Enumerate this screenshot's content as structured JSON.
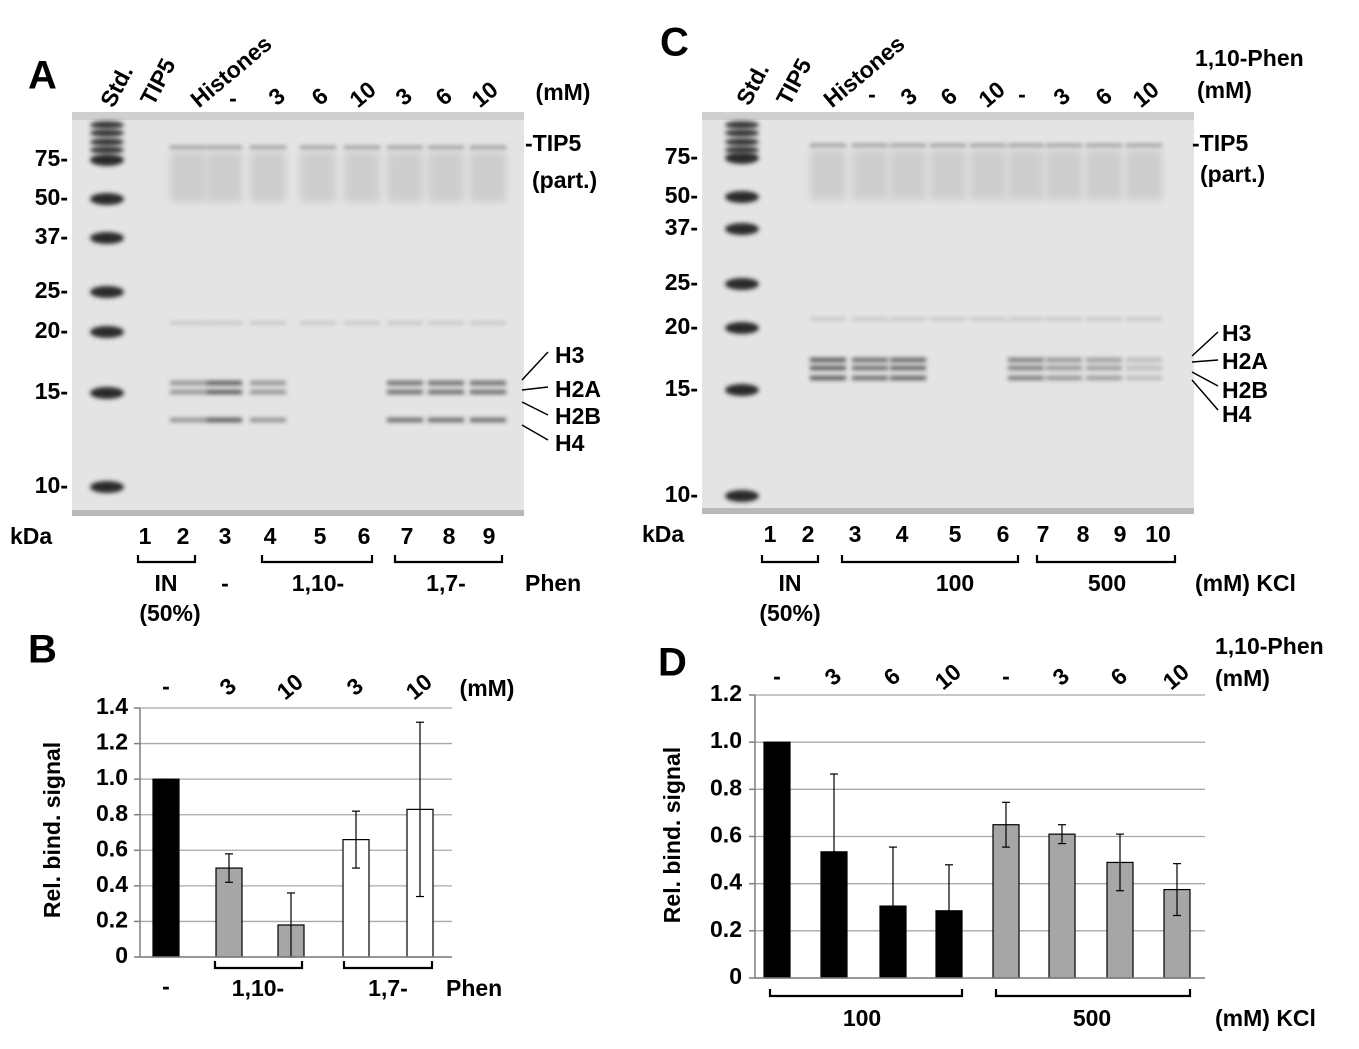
{
  "gels": [
    {
      "panel": "A",
      "lane_labels": [
        "Std.",
        "TIP5",
        "Histones",
        "-",
        "3",
        "6",
        "10",
        "3",
        "6",
        "10"
      ],
      "unit": "(mM)",
      "markers": [
        "75-",
        "50-",
        "37-",
        "25-",
        "20-",
        "15-",
        "10-"
      ],
      "kda": "kDa",
      "lane_numbers": [
        "1",
        "2",
        "3",
        "4",
        "5",
        "6",
        "7",
        "8",
        "9"
      ],
      "groups": [
        "IN",
        "-",
        "1,10-",
        "1,7-",
        "Phen"
      ],
      "group_note": "(50%)",
      "annotations": [
        "-TIP5",
        "(part.)",
        "H3",
        "H2A",
        "H2B",
        "H4"
      ]
    },
    {
      "panel": "C",
      "lane_labels": [
        "Std.",
        "TIP5",
        "Histones",
        "-",
        "3",
        "6",
        "10",
        "-",
        "3",
        "6",
        "10"
      ],
      "phen_label": "1,10-Phen",
      "unit": "(mM)",
      "markers": [
        "75-",
        "50-",
        "37-",
        "25-",
        "20-",
        "15-",
        "10-"
      ],
      "kda": "kDa",
      "lane_numbers": [
        "1",
        "2",
        "3",
        "4",
        "5",
        "6",
        "7",
        "8",
        "9",
        "10"
      ],
      "groups": [
        "IN",
        "100",
        "500",
        "(mM) KCl"
      ],
      "group_note": "(50%)",
      "annotations": [
        "-TIP5",
        "(part.)",
        "H3",
        "H2A",
        "H2B",
        "H4"
      ]
    }
  ],
  "chart_data": [
    {
      "type": "bar",
      "panel": "B",
      "y_label": "Rel. bind. signal",
      "categories": [
        "-",
        "3",
        "10",
        "3",
        "10"
      ],
      "top_unit": "(mM)",
      "groups": [
        "-",
        "1,10-",
        "1,7-"
      ],
      "group_unit": "Phen",
      "values": [
        1.0,
        0.5,
        0.18,
        0.66,
        0.83
      ],
      "errors": [
        0,
        0.08,
        0.18,
        0.16,
        0.49
      ],
      "colors": [
        "#000000",
        "#a6a6a6",
        "#a6a6a6",
        "#ffffff",
        "#ffffff"
      ],
      "ylim": [
        0,
        1.4
      ],
      "yticks": [
        0,
        0.2,
        0.4,
        0.6,
        0.8,
        {
          "value": 1,
          "label": "1.0"
        },
        1.2,
        1.4
      ],
      "grid": true
    },
    {
      "type": "bar",
      "panel": "D",
      "y_label": "Rel. bind. signal",
      "categories": [
        "-",
        "3",
        "6",
        "10",
        "-",
        "3",
        "6",
        "10"
      ],
      "top_label": "1,10-Phen",
      "top_unit": "(mM)",
      "groups": [
        "100",
        "500"
      ],
      "group_unit": "(mM) KCl",
      "values": [
        1.0,
        0.535,
        0.305,
        0.285,
        0.65,
        0.61,
        0.49,
        0.375
      ],
      "errors": [
        0,
        0.33,
        0.25,
        0.195,
        0.095,
        0.04,
        0.12,
        0.11
      ],
      "colors": [
        "#000000",
        "#000000",
        "#000000",
        "#000000",
        "#a6a6a6",
        "#a6a6a6",
        "#a6a6a6",
        "#a6a6a6"
      ],
      "ylim": [
        0,
        1.2
      ],
      "yticks": [
        0,
        0.2,
        0.4,
        0.6,
        0.8,
        {
          "value": 1,
          "label": "1.0"
        },
        1.2
      ],
      "grid": true
    }
  ]
}
